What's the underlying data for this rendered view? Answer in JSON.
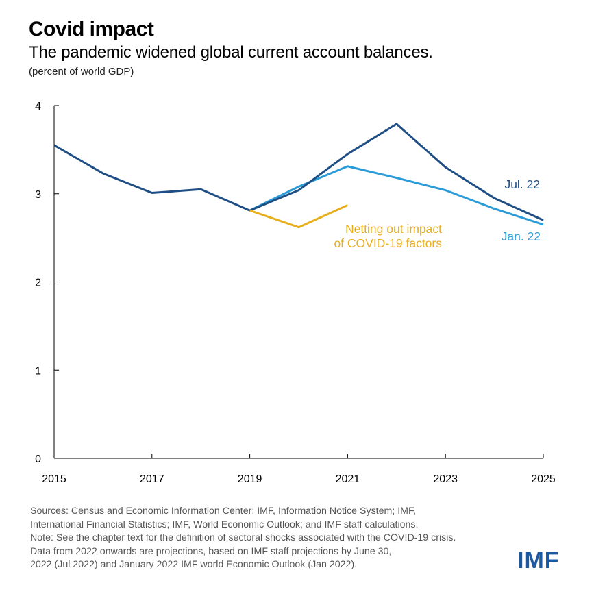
{
  "header": {
    "title": "Covid impact",
    "subtitle": "The pandemic widened global current account balances.",
    "unit": "(percent of world GDP)"
  },
  "chart_data": {
    "type": "line",
    "title": "Covid impact",
    "subtitle": "The pandemic widened global current account balances.",
    "ylabel": "(percent of world GDP)",
    "xlabel": "",
    "xlim": [
      2015,
      2025
    ],
    "ylim": [
      0,
      4
    ],
    "x_ticks": [
      "2015",
      "2017",
      "2019",
      "2021",
      "2023",
      "2025"
    ],
    "y_ticks": [
      "0",
      "1",
      "2",
      "3",
      "4"
    ],
    "grid": false,
    "series": [
      {
        "name": "Jul. 22",
        "color": "#1f4e85",
        "x": [
          2015,
          2016,
          2017,
          2018,
          2019,
          2020,
          2021,
          2022,
          2023,
          2024,
          2025
        ],
        "values": [
          3.55,
          3.23,
          3.01,
          3.05,
          2.81,
          3.04,
          3.45,
          3.79,
          3.3,
          2.95,
          2.7
        ]
      },
      {
        "name": "Jan. 22",
        "color": "#2b9cd8",
        "x": [
          2019,
          2020,
          2021,
          2022,
          2023,
          2024,
          2025
        ],
        "values": [
          2.81,
          3.08,
          3.31,
          3.18,
          3.04,
          2.83,
          2.65
        ]
      },
      {
        "name": "Netting out impact of COVID-19 factors",
        "color": "#e8ae1c",
        "x": [
          2019,
          2020,
          2021
        ],
        "values": [
          2.81,
          2.62,
          2.87
        ]
      }
    ],
    "annotations": [
      {
        "series": 2,
        "lines": [
          "Netting out impact",
          "of COVID-19 factors"
        ]
      },
      {
        "series": 0,
        "lines": [
          "Jul. 22"
        ]
      },
      {
        "series": 1,
        "lines": [
          "Jan. 22"
        ]
      }
    ]
  },
  "sources": {
    "line1": "Sources: Census and Economic Information Center;  IMF, Information  Notice System; IMF,",
    "line2": "International Financial Statistics; IMF, World Economic Outlook; and IMF staff calculations.",
    "line3": "Note: See the chapter text for the definition of sectoral shocks associated with the COVID-19 crisis.",
    "line4": "Data from 2022 onwards are projections, based on IMF staff projections by June 30,",
    "line5": "2022 (Jul 2022) and January 2022 IMF world Economic Outlook (Jan 2022)."
  },
  "logo": {
    "text": "IMF",
    "color": "#1b5aa0"
  }
}
